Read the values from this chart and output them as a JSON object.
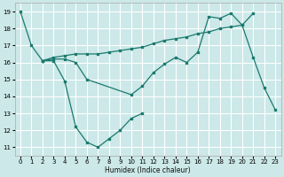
{
  "xlabel": "Humidex (Indice chaleur)",
  "xlim": [
    -0.5,
    23.5
  ],
  "ylim": [
    10.5,
    19.5
  ],
  "yticks": [
    11,
    12,
    13,
    14,
    15,
    16,
    17,
    18,
    19
  ],
  "xticks": [
    0,
    1,
    2,
    3,
    4,
    5,
    6,
    7,
    8,
    9,
    10,
    11,
    12,
    13,
    14,
    15,
    16,
    17,
    18,
    19,
    20,
    21,
    22,
    23
  ],
  "background_color": "#cce8e8",
  "grid_color": "#ffffff",
  "line_color": "#1a7a6e",
  "lines": [
    {
      "x": [
        0,
        1,
        2,
        3,
        4,
        5,
        6,
        7,
        8,
        9,
        10,
        11
      ],
      "y": [
        19.0,
        17.0,
        16.1,
        16.1,
        14.9,
        12.2,
        11.3,
        11.0,
        11.5,
        12.0,
        12.7,
        13.0
      ]
    },
    {
      "x": [
        2,
        3,
        4,
        5,
        6,
        7,
        8,
        9,
        10,
        11,
        12,
        13,
        14,
        15,
        16,
        17,
        18,
        19,
        20,
        21
      ],
      "y": [
        16.1,
        16.3,
        16.4,
        16.5,
        16.5,
        16.5,
        16.6,
        16.7,
        16.8,
        16.9,
        17.1,
        17.3,
        17.4,
        17.5,
        17.7,
        17.8,
        18.0,
        18.1,
        18.2,
        18.9
      ]
    },
    {
      "x": [
        2,
        3,
        4,
        5,
        6,
        10,
        11,
        12,
        13,
        14,
        15,
        16,
        17,
        18,
        19,
        20,
        21,
        22,
        23
      ],
      "y": [
        16.1,
        16.2,
        16.2,
        16.0,
        15.0,
        14.1,
        14.6,
        15.4,
        15.9,
        16.3,
        16.0,
        16.6,
        18.7,
        18.6,
        18.9,
        18.2,
        16.3,
        14.5,
        13.2
      ]
    }
  ]
}
